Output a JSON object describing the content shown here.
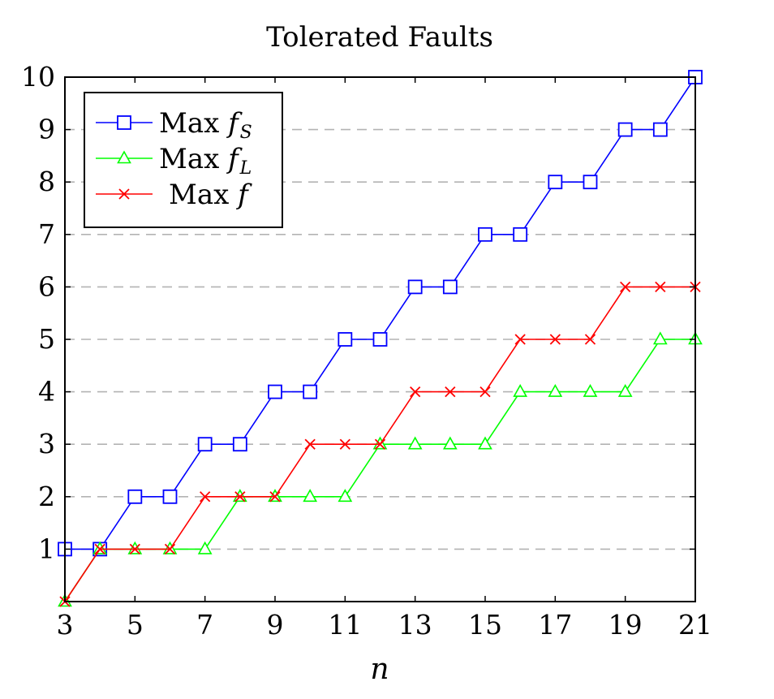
{
  "chart_data": {
    "type": "line",
    "title": "Tolerated Faults",
    "xlabel": "n",
    "ylabel": "",
    "xlim": [
      3,
      21
    ],
    "ylim": [
      0,
      10
    ],
    "xticks": [
      3,
      5,
      7,
      9,
      11,
      13,
      15,
      17,
      19,
      21
    ],
    "yticks": [
      1,
      2,
      3,
      4,
      5,
      6,
      7,
      8,
      9,
      10
    ],
    "grid": "horizontal-dashed",
    "legend_position": "top-left",
    "x": [
      3,
      4,
      5,
      6,
      7,
      8,
      9,
      10,
      11,
      12,
      13,
      14,
      15,
      16,
      17,
      18,
      19,
      20,
      21
    ],
    "series": [
      {
        "name": "Max f_S",
        "legend": {
          "prefix": "Max ",
          "var": "f",
          "sub": "S"
        },
        "color": "#0000ff",
        "marker": "square",
        "values": [
          1,
          1,
          2,
          2,
          3,
          3,
          4,
          4,
          5,
          5,
          6,
          6,
          7,
          7,
          8,
          8,
          9,
          9,
          10
        ]
      },
      {
        "name": "Max f_L",
        "legend": {
          "prefix": "Max ",
          "var": "f",
          "sub": "L"
        },
        "color": "#00ff00",
        "marker": "triangle",
        "values": [
          0,
          1,
          1,
          1,
          1,
          2,
          2,
          2,
          2,
          3,
          3,
          3,
          3,
          4,
          4,
          4,
          4,
          5,
          5
        ]
      },
      {
        "name": "Max f",
        "legend": {
          "prefix": "Max ",
          "var": "f",
          "sub": ""
        },
        "color": "#ff0000",
        "marker": "x",
        "values": [
          0,
          1,
          1,
          1,
          2,
          2,
          2,
          3,
          3,
          3,
          4,
          4,
          4,
          5,
          5,
          5,
          6,
          6,
          6
        ]
      }
    ]
  }
}
